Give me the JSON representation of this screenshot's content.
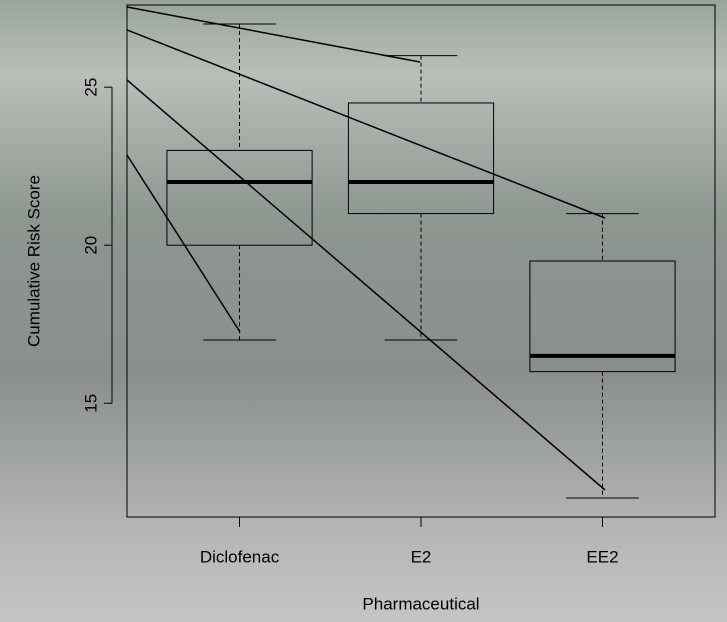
{
  "chart_data": {
    "type": "boxplot",
    "x_label": "Pharmaceutical",
    "y_label": "Cumulative Risk Score",
    "categories": [
      "Diclofenac",
      "E2",
      "EE2"
    ],
    "boxes": [
      {
        "min": 17,
        "q1": 20,
        "median": 22,
        "q3": 23,
        "max": 27
      },
      {
        "min": 17,
        "q1": 21,
        "median": 22,
        "q3": 24.5,
        "max": 26
      },
      {
        "min": 12,
        "q1": 16,
        "median": 16.5,
        "q3": 19.5,
        "max": 21
      }
    ],
    "color": "#000000",
    "ylim": [
      11.4,
      27.6
    ],
    "yticks": [
      15,
      20,
      25
    ]
  }
}
